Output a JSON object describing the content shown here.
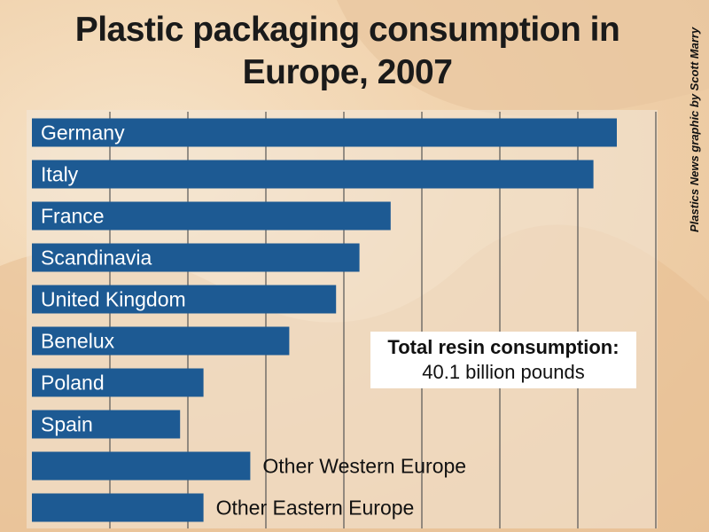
{
  "chart_data": {
    "type": "barh",
    "title": "Plastic packaging consumption in Europe, 2007",
    "credit": "Plastics News graphic by Scott Marry",
    "annotation": {
      "title": "Total resin consumption:",
      "text": "40.1 billion pounds"
    },
    "categories": [
      "Germany",
      "Italy",
      "France",
      "Scandinavia",
      "United Kingdom",
      "Benelux",
      "Poland",
      "Spain",
      "Other Western Europe",
      "Other Eastern Europe"
    ],
    "values": [
      7.5,
      7.2,
      4.6,
      4.2,
      3.9,
      3.3,
      2.2,
      1.9,
      2.8,
      2.2
    ],
    "color": "#1d5a93",
    "xlim": [
      0,
      8
    ],
    "xticks": [
      1,
      2,
      3,
      4,
      5,
      6,
      7,
      8
    ],
    "grid": true
  }
}
